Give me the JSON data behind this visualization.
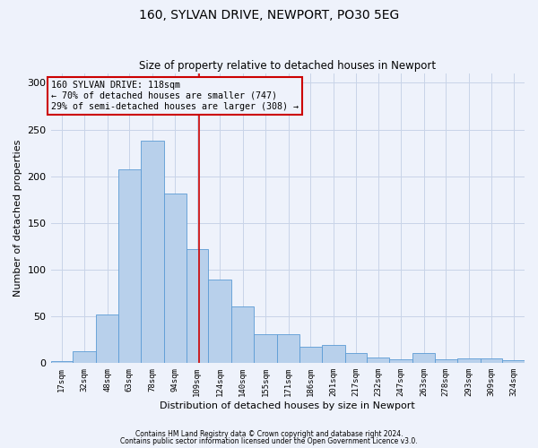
{
  "title1": "160, SYLVAN DRIVE, NEWPORT, PO30 5EG",
  "title2": "Size of property relative to detached houses in Newport",
  "xlabel": "Distribution of detached houses by size in Newport",
  "ylabel": "Number of detached properties",
  "footnote1": "Contains HM Land Registry data © Crown copyright and database right 2024.",
  "footnote2": "Contains public sector information licensed under the Open Government Licence v3.0.",
  "annotation_line1": "160 SYLVAN DRIVE: 118sqm",
  "annotation_line2": "← 70% of detached houses are smaller (747)",
  "annotation_line3": "29% of semi-detached houses are larger (308) →",
  "property_size": 118,
  "bar_values": [
    2,
    12,
    52,
    207,
    238,
    181,
    122,
    89,
    60,
    31,
    31,
    17,
    19,
    10,
    6,
    4,
    10,
    4,
    5,
    5,
    3
  ],
  "bin_labels": [
    "17sqm",
    "32sqm",
    "48sqm",
    "63sqm",
    "78sqm",
    "94sqm",
    "109sqm",
    "124sqm",
    "140sqm",
    "155sqm",
    "171sqm",
    "186sqm",
    "201sqm",
    "217sqm",
    "232sqm",
    "247sqm",
    "263sqm",
    "278sqm",
    "293sqm",
    "309sqm",
    "324sqm"
  ],
  "bin_edges": [
    17,
    32,
    48,
    63,
    78,
    94,
    109,
    124,
    140,
    155,
    171,
    186,
    201,
    217,
    232,
    247,
    263,
    278,
    293,
    309,
    324,
    339
  ],
  "bar_color": "#b8d0eb",
  "bar_edge_color": "#5b9bd5",
  "vline_x": 118,
  "vline_color": "#cc0000",
  "annotation_box_color": "#cc0000",
  "background_color": "#eef2fb",
  "grid_color": "#c8d4e8",
  "ylim": [
    0,
    310
  ],
  "yticks": [
    0,
    50,
    100,
    150,
    200,
    250,
    300
  ]
}
